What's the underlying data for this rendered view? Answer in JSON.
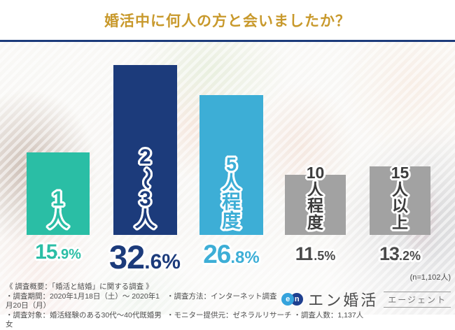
{
  "header": {
    "title": "婚活中に何人の方と会いましたか？"
  },
  "chart_data": {
    "type": "bar",
    "title": "婚活中に何人の方と会いましたか？",
    "categories": [
      "1人",
      "2〜3人",
      "5人程度",
      "10人程度",
      "15人以上"
    ],
    "values": [
      15.9,
      32.6,
      26.8,
      11.5,
      13.2
    ],
    "unit": "%",
    "ylim": [
      0,
      35
    ],
    "grid": false,
    "legend": "none",
    "sample_note": "(n=1,102人)",
    "bar_colors": [
      "#2ABEA5",
      "#1C3B7B",
      "#3DAED6",
      "#A2A2A2",
      "#A2A2A2"
    ],
    "value_label_colors": [
      "#2ABEA5",
      "#1C3B7B",
      "#3DAED6",
      "#4A4A4A",
      "#4A4A4A"
    ],
    "category_label_colors": [
      "#2ABEA5",
      "#1C3B7B",
      "#3DAED6",
      "#3C3C3C",
      "#3C3C3C"
    ]
  },
  "bars": [
    {
      "rows": [
        "1",
        "人"
      ],
      "pct_main": "15",
      "pct_rest": ".9%"
    },
    {
      "rows": [
        "2",
        "〜",
        "3",
        "人"
      ],
      "pct_main": "32",
      "pct_rest": ".6%"
    },
    {
      "rows": [
        "5",
        "人",
        "程",
        "度"
      ],
      "pct_main": "26",
      "pct_rest": ".8%"
    },
    {
      "rows": [
        "10",
        "人",
        "程",
        "度"
      ],
      "pct_main": "11",
      "pct_rest": ".5%"
    },
    {
      "rows": [
        "15",
        "人",
        "以",
        "上"
      ],
      "pct_main": "13",
      "pct_rest": ".2%"
    }
  ],
  "sample_note": "(n=1,102人)",
  "footer": {
    "line1": "《 調査概要：「婚活と結婚」に関する調査 》",
    "line2_left": "・調査期間：2020年1月18日（土）～ 2020年1月20日（月）",
    "line2_right": "・調査方法：インターネット調査",
    "line3_left": "・調査対象：婚活経験のある30代～40代既婚男女",
    "line3_right": "・モニター提供元：ゼネラルリサーチ ・調査人数：1,137人"
  },
  "logo": {
    "badge_e": "e",
    "badge_n": "n",
    "brand": "エン婚活",
    "brand_sub": "エージェント"
  },
  "colors": {
    "title_gold": "#C8992C",
    "divider_navy": "#1C3B7B",
    "teal": "#2ABEA5",
    "navy": "#1C3B7B",
    "light_blue": "#3DAED6",
    "gray": "#A2A2A2"
  }
}
